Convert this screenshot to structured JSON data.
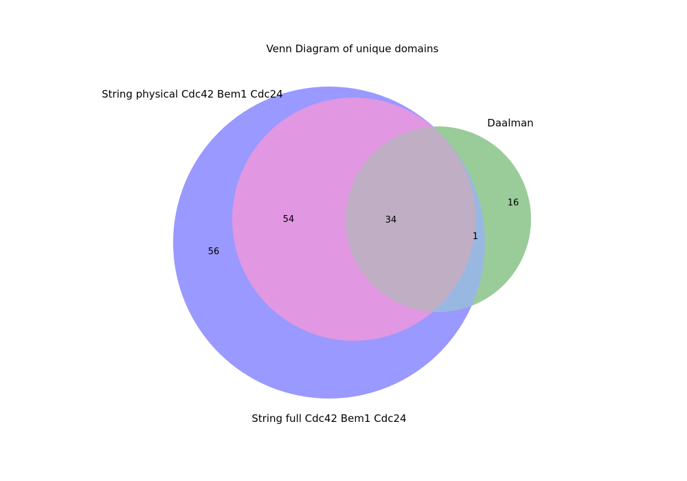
{
  "title": "Venn Diagram of unique domains",
  "sets": {
    "full": {
      "label": "String full Cdc42 Bem1 Cdc24",
      "color": "#9999ff"
    },
    "physical": {
      "label": "String physical Cdc42 Bem1 Cdc24",
      "color": "#e197e1"
    },
    "daalman": {
      "label": "Daalman",
      "color": "#99cc99"
    }
  },
  "overlap_colors": {
    "full_daalman": "#99b8e1",
    "all_three": "#c0aec4"
  },
  "regions": {
    "full_only": "56",
    "full_physical_only": "54",
    "all_three": "34",
    "full_daalman_only": "1",
    "daalman_only": "16"
  }
}
